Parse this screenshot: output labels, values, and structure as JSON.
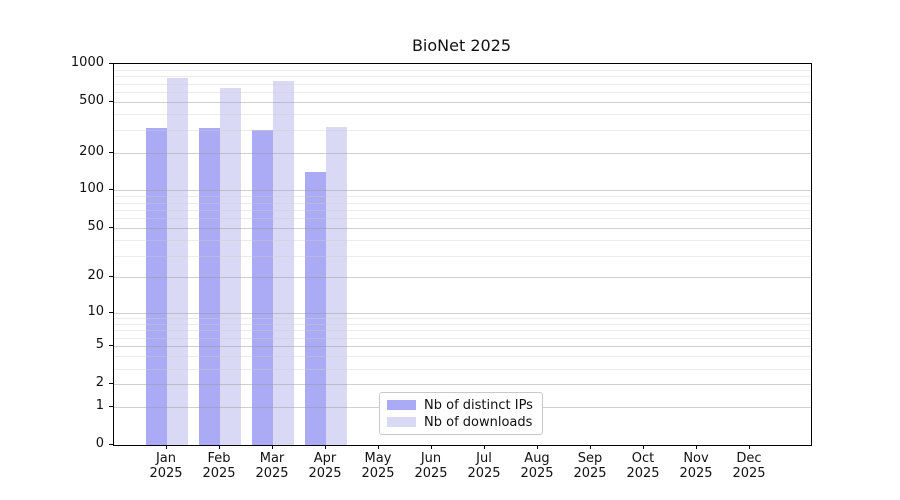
{
  "chart_data": {
    "type": "bar",
    "title": "BioNet 2025",
    "categories": [
      "Jan",
      "Feb",
      "Mar",
      "Apr",
      "May",
      "Jun",
      "Jul",
      "Aug",
      "Sep",
      "Oct",
      "Nov",
      "Dec"
    ],
    "x_year": "2025",
    "series": [
      {
        "key": "distinct-ips",
        "name": "Nb of distinct IPs",
        "color": "#aaaaf5",
        "values": [
          310,
          310,
          300,
          140,
          0,
          0,
          0,
          0,
          0,
          0,
          0,
          0
        ]
      },
      {
        "key": "downloads",
        "name": "Nb of downloads",
        "color": "#d9d9f6",
        "values": [
          770,
          650,
          740,
          320,
          0,
          0,
          0,
          0,
          0,
          0,
          0,
          0
        ]
      }
    ],
    "y_scale": "log10(1+v)",
    "ylim": [
      0,
      1000
    ],
    "y_ticks": [
      0,
      1,
      2,
      5,
      10,
      20,
      50,
      100,
      200,
      500,
      1000
    ],
    "y_minor_ticks": [
      3,
      4,
      6,
      7,
      8,
      9,
      30,
      40,
      60,
      70,
      80,
      90,
      300,
      400,
      600,
      700,
      800,
      900
    ],
    "grid": "both",
    "legend_position": "lower center-left inside plot"
  }
}
